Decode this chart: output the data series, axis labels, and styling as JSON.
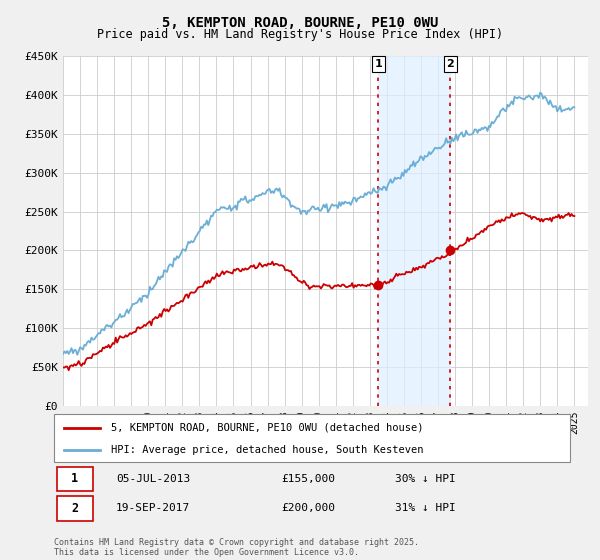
{
  "title": "5, KEMPTON ROAD, BOURNE, PE10 0WU",
  "subtitle": "Price paid vs. HM Land Registry's House Price Index (HPI)",
  "ylim": [
    0,
    450000
  ],
  "yticks": [
    0,
    50000,
    100000,
    150000,
    200000,
    250000,
    300000,
    350000,
    400000,
    450000
  ],
  "ytick_labels": [
    "£0",
    "£50K",
    "£100K",
    "£150K",
    "£200K",
    "£250K",
    "£300K",
    "£350K",
    "£400K",
    "£450K"
  ],
  "xlim_start": 1995.0,
  "xlim_end": 2025.8,
  "hpi_color": "#6baed6",
  "price_color": "#cc0000",
  "transaction1_date": 2013.5,
  "transaction1_price": 155000,
  "transaction1_label": "05-JUL-2013",
  "transaction1_pct": "30% ↓ HPI",
  "transaction2_date": 2017.72,
  "transaction2_price": 200000,
  "transaction2_label": "19-SEP-2017",
  "transaction2_pct": "31% ↓ HPI",
  "shade_color": "#ddeeff",
  "vline_color": "#cc0000",
  "footnote": "Contains HM Land Registry data © Crown copyright and database right 2025.\nThis data is licensed under the Open Government Licence v3.0.",
  "legend_property": "5, KEMPTON ROAD, BOURNE, PE10 0WU (detached house)",
  "legend_hpi": "HPI: Average price, detached house, South Kesteven",
  "background_color": "#f0f0f0",
  "plot_bg_color": "#ffffff"
}
